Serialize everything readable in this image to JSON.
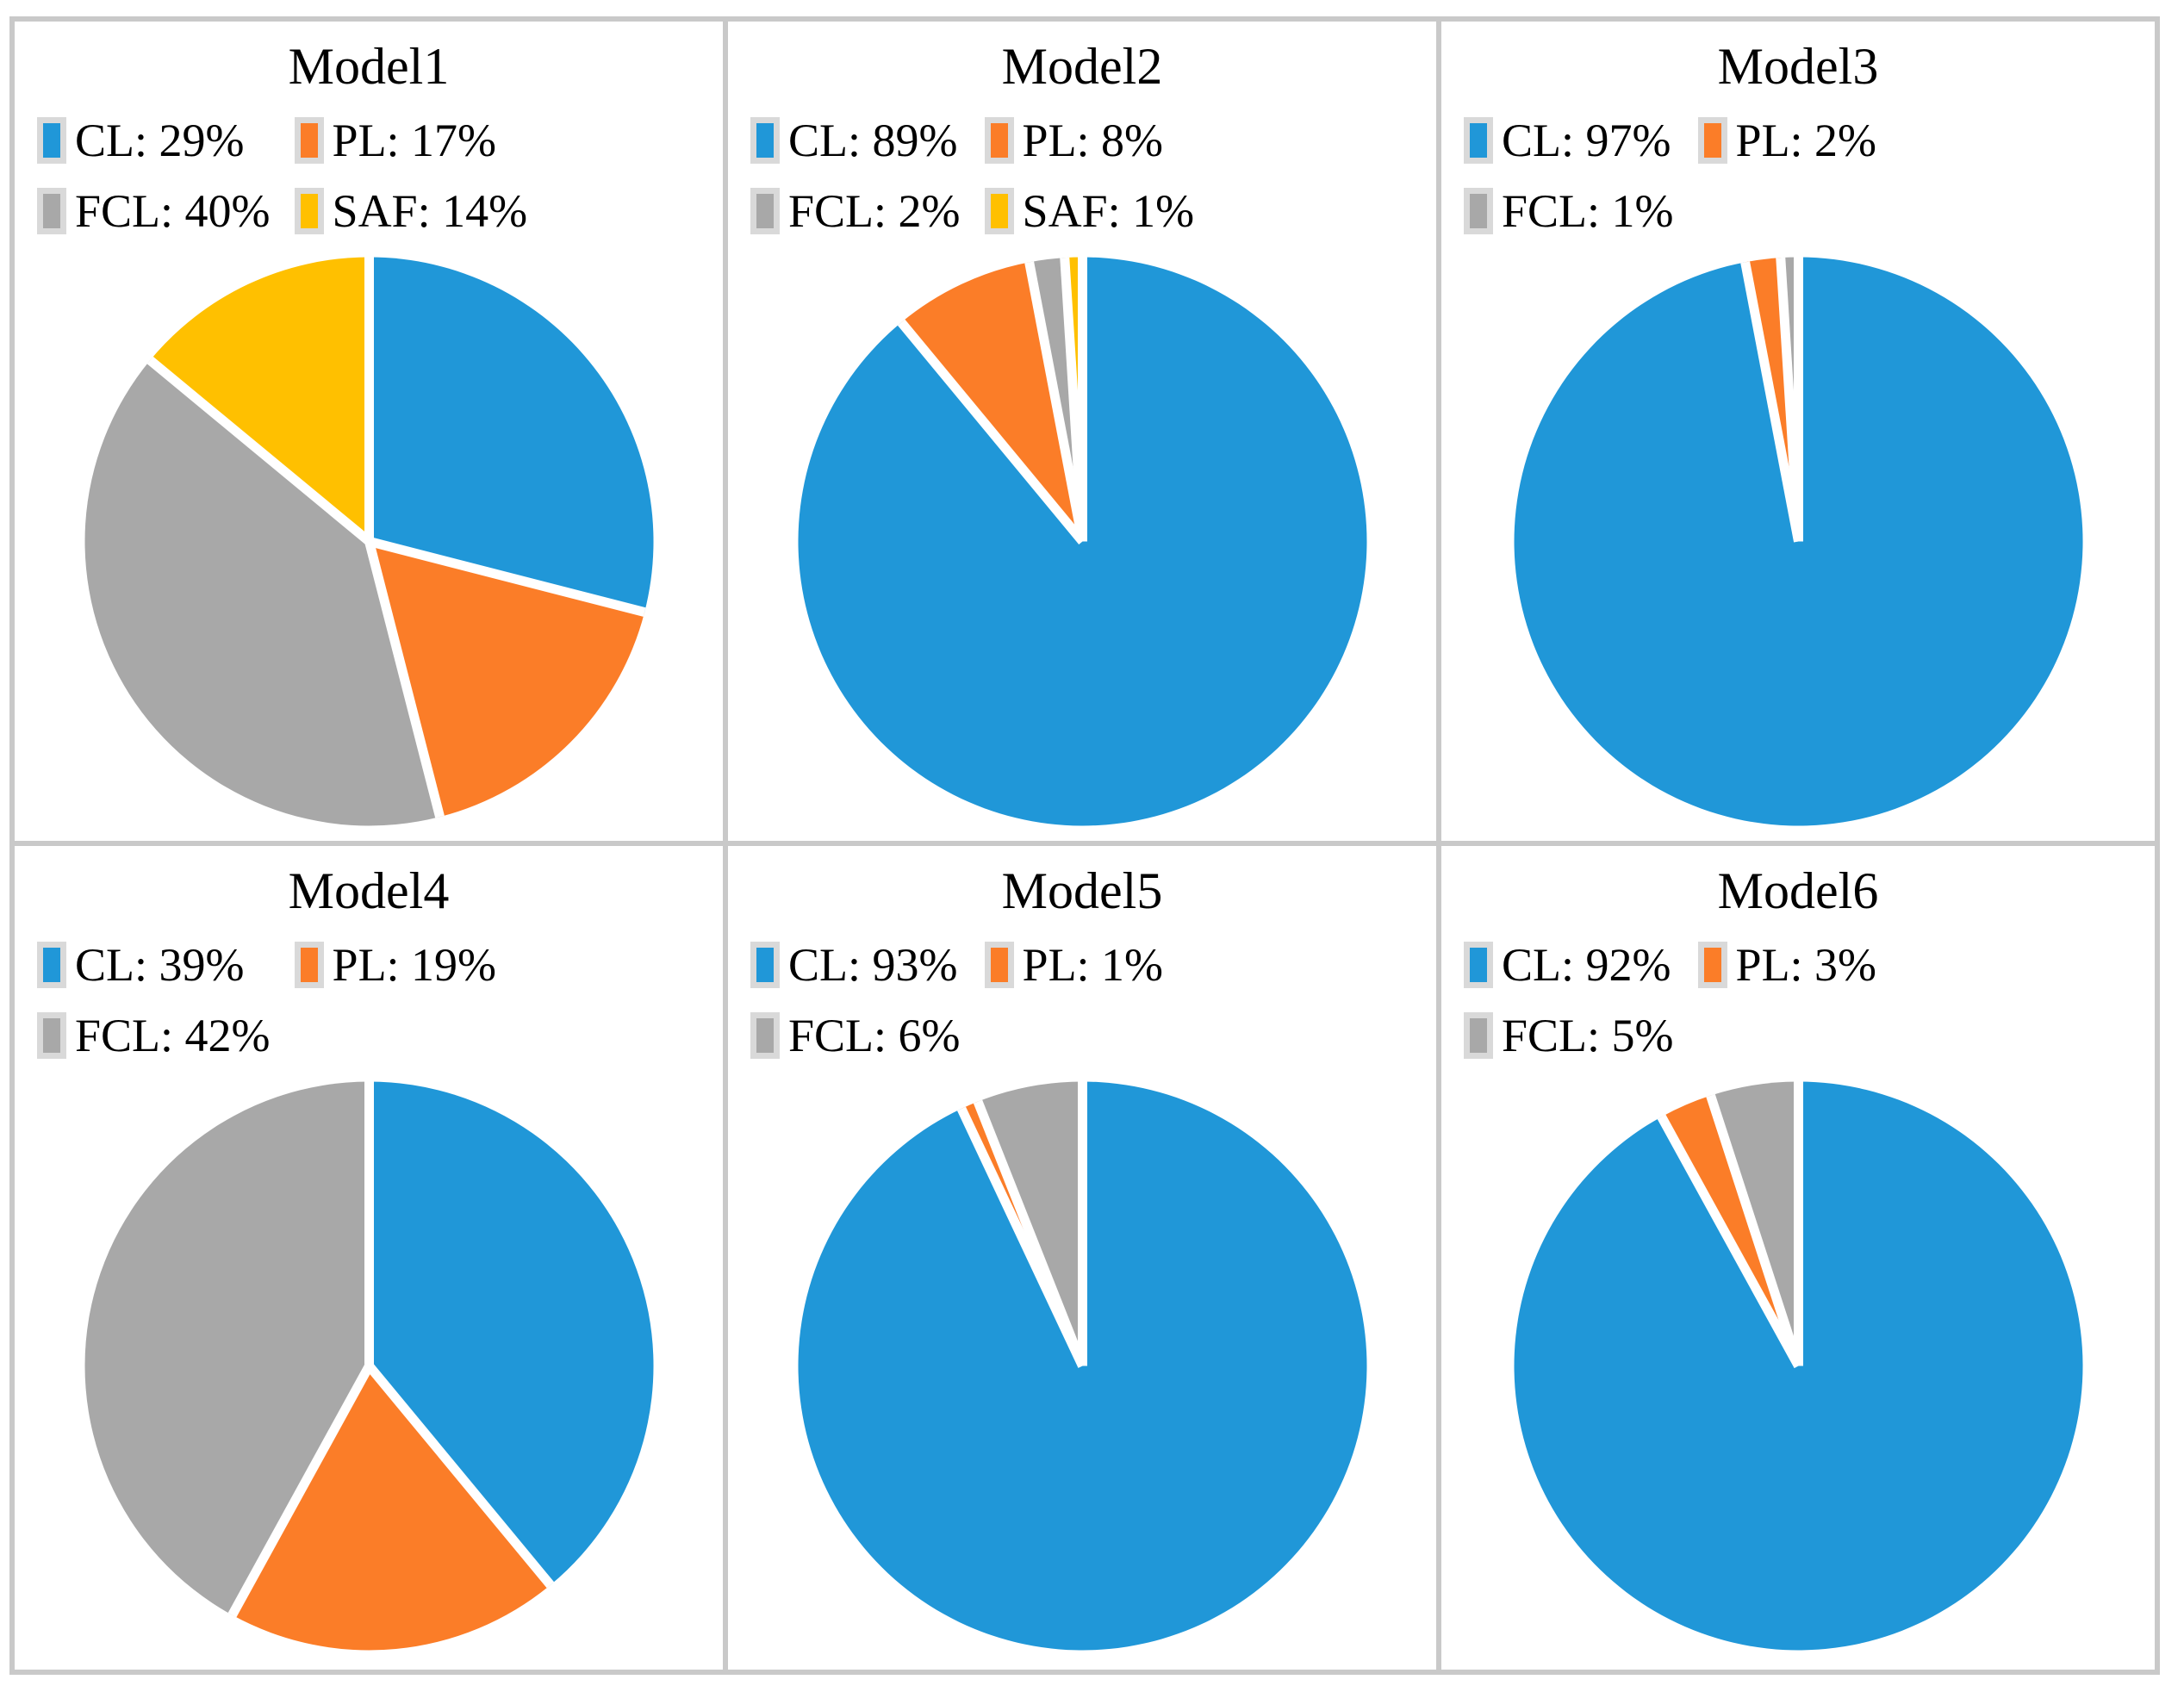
{
  "figure": {
    "background": "#FFFFFF",
    "frame_border_color": "#C9C9C9",
    "swatch_border_color": "#D9D9D9",
    "slice_gap_color": "#FFFFFF"
  },
  "palette": {
    "CL": "#2097D8",
    "PL": "#FB7D28",
    "FCL": "#A8A8A8",
    "SAF": "#FFC000"
  },
  "chart_data": [
    {
      "type": "pie",
      "title": "Model1",
      "legend_position": "top",
      "unit": "%",
      "categories": [
        "CL",
        "PL",
        "FCL",
        "SAF"
      ],
      "values": [
        29,
        17,
        40,
        14
      ],
      "colors": [
        "#2097D8",
        "#FB7D28",
        "#A8A8A8",
        "#FFC000"
      ],
      "legend": [
        {
          "series": "CL",
          "label": "CL: 29%"
        },
        {
          "series": "PL",
          "label": "PL: 17%"
        },
        {
          "series": "FCL",
          "label": "FCL: 40%"
        },
        {
          "series": "SAF",
          "label": "SAF: 14%"
        }
      ]
    },
    {
      "type": "pie",
      "title": "Model2",
      "legend_position": "top",
      "unit": "%",
      "categories": [
        "CL",
        "PL",
        "FCL",
        "SAF"
      ],
      "values": [
        89,
        8,
        2,
        1
      ],
      "colors": [
        "#2097D8",
        "#FB7D28",
        "#A8A8A8",
        "#FFC000"
      ],
      "legend": [
        {
          "series": "CL",
          "label": "CL: 89%"
        },
        {
          "series": "PL",
          "label": "PL: 8%"
        },
        {
          "series": "FCL",
          "label": "FCL: 2%"
        },
        {
          "series": "SAF",
          "label": "SAF: 1%"
        }
      ]
    },
    {
      "type": "pie",
      "title": "Model3",
      "legend_position": "top",
      "unit": "%",
      "categories": [
        "CL",
        "PL",
        "FCL"
      ],
      "values": [
        97,
        2,
        1
      ],
      "colors": [
        "#2097D8",
        "#FB7D28",
        "#A8A8A8"
      ],
      "legend": [
        {
          "series": "CL",
          "label": "CL: 97%"
        },
        {
          "series": "PL",
          "label": "PL: 2%"
        },
        {
          "series": "FCL",
          "label": "FCL: 1%"
        }
      ]
    },
    {
      "type": "pie",
      "title": "Model4",
      "legend_position": "top",
      "unit": "%",
      "categories": [
        "CL",
        "PL",
        "FCL"
      ],
      "values": [
        39,
        19,
        42
      ],
      "colors": [
        "#2097D8",
        "#FB7D28",
        "#A8A8A8"
      ],
      "legend": [
        {
          "series": "CL",
          "label": "CL: 39%"
        },
        {
          "series": "PL",
          "label": "PL: 19%"
        },
        {
          "series": "FCL",
          "label": "FCL: 42%"
        }
      ]
    },
    {
      "type": "pie",
      "title": "Model5",
      "legend_position": "top",
      "unit": "%",
      "categories": [
        "CL",
        "PL",
        "FCL"
      ],
      "values": [
        93,
        1,
        6
      ],
      "colors": [
        "#2097D8",
        "#FB7D28",
        "#A8A8A8"
      ],
      "legend": [
        {
          "series": "CL",
          "label": "CL: 93%"
        },
        {
          "series": "PL",
          "label": "PL: 1%"
        },
        {
          "series": "FCL",
          "label": "FCL: 6%"
        }
      ]
    },
    {
      "type": "pie",
      "title": "Model6",
      "legend_position": "top",
      "unit": "%",
      "categories": [
        "CL",
        "PL",
        "FCL"
      ],
      "values": [
        92,
        3,
        5
      ],
      "colors": [
        "#2097D8",
        "#FB7D28",
        "#A8A8A8"
      ],
      "legend": [
        {
          "series": "CL",
          "label": "CL: 92%"
        },
        {
          "series": "PL",
          "label": "PL: 3%"
        },
        {
          "series": "FCL",
          "label": "FCL: 5%"
        }
      ]
    }
  ]
}
